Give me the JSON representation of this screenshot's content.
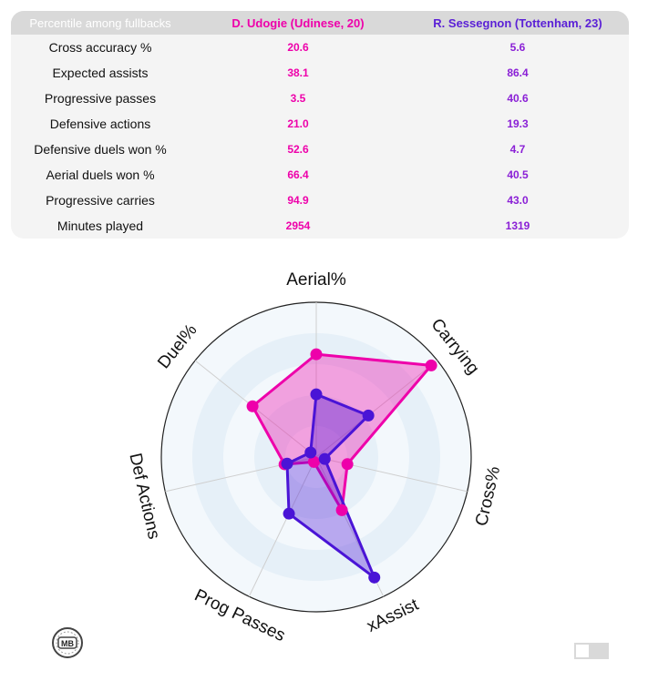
{
  "table": {
    "header": {
      "metric": "Percentile among fullbacks",
      "player1": "D. Udogie (Udinese, 20)",
      "player2": "R. Sessegnon (Tottenham, 23)"
    },
    "rows": [
      {
        "metric": "Cross accuracy %",
        "p1": "20.6",
        "p2": "5.6"
      },
      {
        "metric": "Expected assists",
        "p1": "38.1",
        "p2": "86.4"
      },
      {
        "metric": "Progressive passes",
        "p1": "3.5",
        "p2": "40.6"
      },
      {
        "metric": "Defensive actions",
        "p1": "21.0",
        "p2": "19.3"
      },
      {
        "metric": "Defensive duels won %",
        "p1": "52.6",
        "p2": "4.7"
      },
      {
        "metric": "Aerial duels won %",
        "p1": "66.4",
        "p2": "40.5"
      },
      {
        "metric": "Progressive carries",
        "p1": "94.9",
        "p2": "43.0"
      },
      {
        "metric": "Minutes played",
        "p1": "2954",
        "p2": "1319"
      }
    ]
  },
  "chart_data": {
    "type": "radar",
    "axes": [
      "Aerial%",
      "Carrying",
      "Cross%",
      "xAssist",
      "Prog Passes",
      "Def Actions",
      "Duel%"
    ],
    "range": [
      0,
      100
    ],
    "series": [
      {
        "name": "D. Udogie (Udinese, 20)",
        "color": "#ee00aa",
        "values": [
          66.4,
          94.9,
          20.6,
          38.1,
          3.5,
          21.0,
          52.6
        ]
      },
      {
        "name": "R. Sessegnon (Tottenham, 23)",
        "color": "#4a14d6",
        "values": [
          40.5,
          43.0,
          5.6,
          86.4,
          40.6,
          19.3,
          4.7
        ]
      }
    ],
    "grid": true
  },
  "colors": {
    "player1": "#ee00aa",
    "player2": "#4a14d6",
    "ring_light": "#f3f8fc",
    "ring_dark": "#e6f0f8"
  },
  "logo": {
    "text": "MB",
    "icon": "mb-logo-icon"
  },
  "toggle": {
    "icon": "toggle-switch-icon"
  }
}
